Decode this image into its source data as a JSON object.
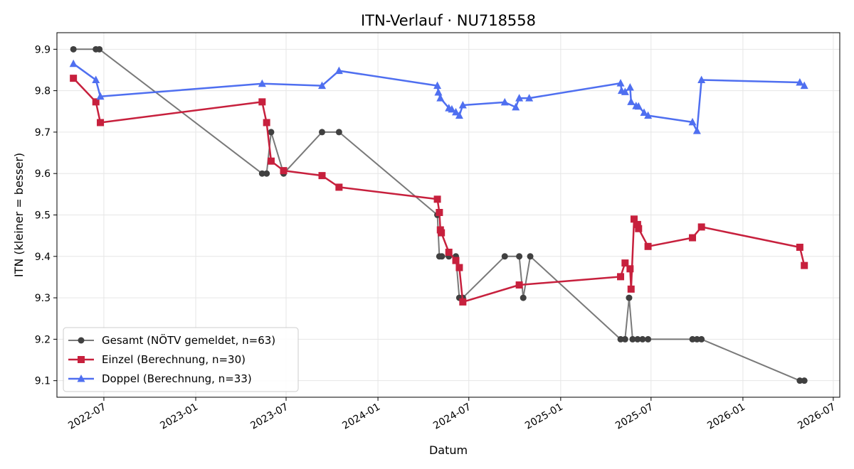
{
  "chart_data": {
    "type": "line",
    "title": "ITN-Verlauf · NU718558",
    "xlabel": "Datum",
    "ylabel": "ITN  (kleiner = besser)",
    "ylim": [
      9.06,
      9.94
    ],
    "xlim": [
      "2022-03-29",
      "2026-07-14"
    ],
    "grid": true,
    "legend_position": "lower-left",
    "x_ticks": [
      "2022-07",
      "2023-01",
      "2023-07",
      "2024-01",
      "2024-07",
      "2025-01",
      "2025-07",
      "2026-01",
      "2026-07"
    ],
    "y_ticks": [
      "9.1",
      "9.2",
      "9.3",
      "9.4",
      "9.5",
      "9.6",
      "9.7",
      "9.8",
      "9.9"
    ],
    "series": [
      {
        "name": "Gesamt (NÖTV gemeldet, n=63)",
        "color": "#404040",
        "marker": "circle",
        "points": [
          [
            "2022-05-01",
            9.9
          ],
          [
            "2022-06-15",
            9.9
          ],
          [
            "2022-06-22",
            9.9
          ],
          [
            "2023-05-14",
            9.6
          ],
          [
            "2023-05-23",
            9.6
          ],
          [
            "2023-06-01",
            9.7
          ],
          [
            "2023-06-26",
            9.6
          ],
          [
            "2023-09-11",
            9.7
          ],
          [
            "2023-10-15",
            9.7
          ],
          [
            "2024-04-29",
            9.5
          ],
          [
            "2024-05-03",
            9.4
          ],
          [
            "2024-05-08",
            9.4
          ],
          [
            "2024-05-22",
            9.4
          ],
          [
            "2024-06-05",
            9.4
          ],
          [
            "2024-06-12",
            9.3
          ],
          [
            "2024-06-19",
            9.3
          ],
          [
            "2024-09-11",
            9.4
          ],
          [
            "2024-10-10",
            9.4
          ],
          [
            "2024-10-18",
            9.3
          ],
          [
            "2024-11-01",
            9.4
          ],
          [
            "2025-05-01",
            9.2
          ],
          [
            "2025-05-10",
            9.2
          ],
          [
            "2025-05-18",
            9.3
          ],
          [
            "2025-05-25",
            9.2
          ],
          [
            "2025-06-04",
            9.2
          ],
          [
            "2025-06-14",
            9.2
          ],
          [
            "2025-06-25",
            9.2
          ],
          [
            "2025-09-22",
            9.2
          ],
          [
            "2025-10-01",
            9.2
          ],
          [
            "2025-10-10",
            9.2
          ],
          [
            "2026-04-25",
            9.1
          ],
          [
            "2026-05-04",
            9.1
          ]
        ]
      },
      {
        "name": "Einzel (Berechnung, n=30)",
        "color": "#c7203d",
        "marker": "square",
        "points": [
          [
            "2022-05-01",
            9.83
          ],
          [
            "2022-06-15",
            9.773
          ],
          [
            "2022-06-24",
            9.723
          ],
          [
            "2023-05-14",
            9.773
          ],
          [
            "2023-05-23",
            9.723
          ],
          [
            "2023-06-01",
            9.63
          ],
          [
            "2023-06-26",
            9.607
          ],
          [
            "2023-09-11",
            9.595
          ],
          [
            "2023-10-15",
            9.567
          ],
          [
            "2024-04-29",
            9.538
          ],
          [
            "2024-05-03",
            9.506
          ],
          [
            "2024-05-05",
            9.464
          ],
          [
            "2024-05-07",
            9.457
          ],
          [
            "2024-05-22",
            9.41
          ],
          [
            "2024-06-05",
            9.39
          ],
          [
            "2024-06-12",
            9.373
          ],
          [
            "2024-06-19",
            9.29
          ],
          [
            "2024-10-10",
            9.331
          ],
          [
            "2025-05-01",
            9.351
          ],
          [
            "2025-05-10",
            9.384
          ],
          [
            "2025-05-20",
            9.37
          ],
          [
            "2025-05-22",
            9.321
          ],
          [
            "2025-05-28",
            9.49
          ],
          [
            "2025-06-04",
            9.477
          ],
          [
            "2025-06-06",
            9.467
          ],
          [
            "2025-06-25",
            9.424
          ],
          [
            "2025-09-22",
            9.445
          ],
          [
            "2025-10-10",
            9.471
          ],
          [
            "2026-04-25",
            9.422
          ],
          [
            "2026-05-04",
            9.378
          ]
        ]
      },
      {
        "name": "Doppel (Berechnung, n=33)",
        "color": "#4f6ff0",
        "marker": "triangle",
        "points": [
          [
            "2022-05-01",
            9.865
          ],
          [
            "2022-06-15",
            9.826
          ],
          [
            "2022-06-24",
            9.786
          ],
          [
            "2023-05-14",
            9.817
          ],
          [
            "2023-09-11",
            9.812
          ],
          [
            "2023-10-15",
            9.848
          ],
          [
            "2024-04-29",
            9.812
          ],
          [
            "2024-05-01",
            9.796
          ],
          [
            "2024-05-05",
            9.782
          ],
          [
            "2024-05-22",
            9.758
          ],
          [
            "2024-05-28",
            9.755
          ],
          [
            "2024-06-05",
            9.748
          ],
          [
            "2024-06-12",
            9.74
          ],
          [
            "2024-06-19",
            9.765
          ],
          [
            "2024-09-11",
            9.772
          ],
          [
            "2024-10-03",
            9.76
          ],
          [
            "2024-10-10",
            9.782
          ],
          [
            "2024-10-30",
            9.782
          ],
          [
            "2025-05-01",
            9.818
          ],
          [
            "2025-05-03",
            9.8
          ],
          [
            "2025-05-10",
            9.797
          ],
          [
            "2025-05-20",
            9.808
          ],
          [
            "2025-05-22",
            9.773
          ],
          [
            "2025-06-01",
            9.763
          ],
          [
            "2025-06-06",
            9.762
          ],
          [
            "2025-06-17",
            9.747
          ],
          [
            "2025-06-25",
            9.74
          ],
          [
            "2025-09-22",
            9.724
          ],
          [
            "2025-10-01",
            9.703
          ],
          [
            "2025-10-10",
            9.826
          ],
          [
            "2026-04-25",
            9.82
          ],
          [
            "2026-05-04",
            9.812
          ]
        ]
      }
    ]
  }
}
